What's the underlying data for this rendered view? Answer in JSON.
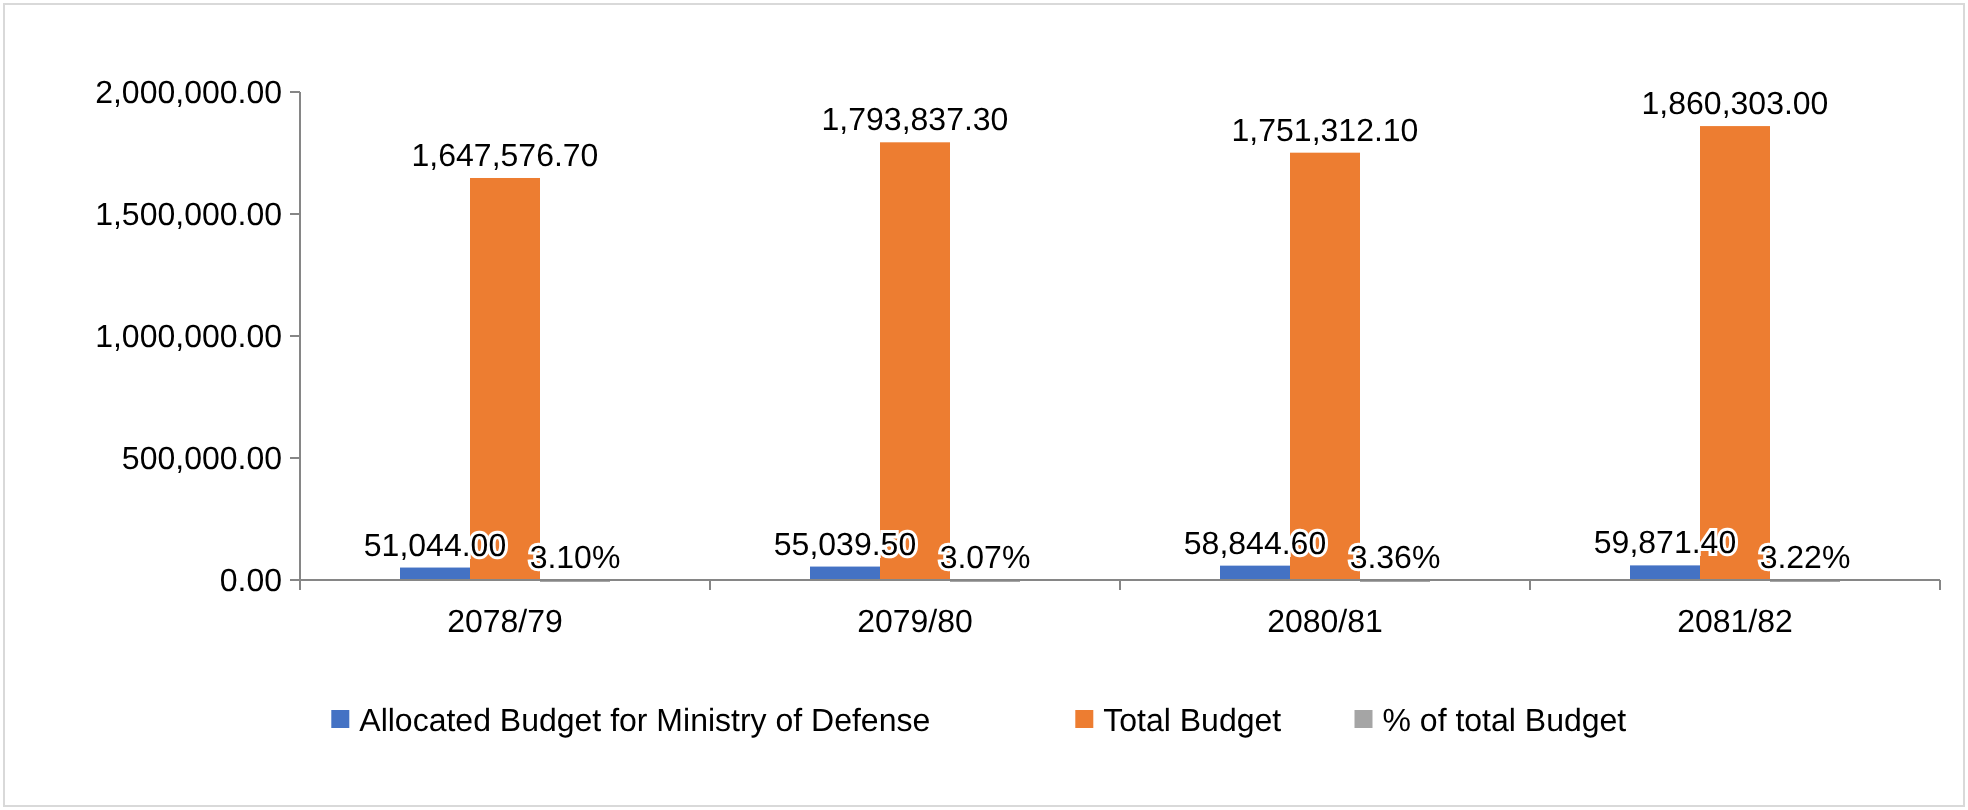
{
  "chart_data": {
    "type": "bar",
    "categories": [
      "2078/79",
      "2079/80",
      "2080/81",
      "2081/82"
    ],
    "series": [
      {
        "name": "Allocated Budget for Ministry of Defense",
        "color": "#4472c4",
        "values": [
          51044.0,
          55039.5,
          58844.6,
          59871.4
        ],
        "value_labels": [
          "51,044.00",
          "55,039.50",
          "58,844.60",
          "59,871.40"
        ]
      },
      {
        "name": "Total Budget",
        "color": "#ed7d31",
        "values": [
          1647576.7,
          1793837.3,
          1751312.1,
          1860303.0
        ],
        "value_labels": [
          "1,647,576.70",
          "1,793,837.30",
          "1,751,312.10",
          "1,860,303.00"
        ]
      },
      {
        "name": "% of total Budget",
        "color": "#a5a5a5",
        "values": [
          3.1,
          3.07,
          3.36,
          3.22
        ],
        "value_labels": [
          "3.10%",
          "3.07%",
          "3.36%",
          "3.22%"
        ]
      }
    ],
    "ylim": [
      0,
      2000000
    ],
    "yticks": [
      {
        "value": 0,
        "label": "0.00"
      },
      {
        "value": 500000,
        "label": "500,000.00"
      },
      {
        "value": 1000000,
        "label": "1,000,000.00"
      },
      {
        "value": 1500000,
        "label": "1,500,000.00"
      },
      {
        "value": 2000000,
        "label": "2,000,000.00"
      }
    ],
    "grid": false,
    "legend": "bottom"
  }
}
